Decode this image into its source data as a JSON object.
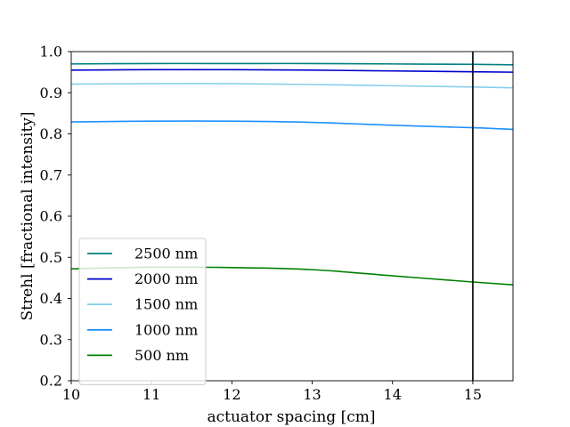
{
  "chart_data": {
    "type": "line",
    "title": "",
    "xlabel": "actuator spacing [cm]",
    "ylabel": "Strehl [fractional intensity]",
    "xlim": [
      10,
      15.5
    ],
    "ylim": [
      0.2,
      1.0
    ],
    "xticks": [
      10,
      11,
      12,
      13,
      14,
      15
    ],
    "yticks": [
      0.2,
      0.3,
      0.4,
      0.5,
      0.6,
      0.7,
      0.8,
      0.9,
      1.0
    ],
    "xtick_labels": [
      "10",
      "11",
      "12",
      "13",
      "14",
      "15"
    ],
    "ytick_labels": [
      "0.2",
      "0.3",
      "0.4",
      "0.5",
      "0.6",
      "0.7",
      "0.8",
      "0.9",
      "1.0"
    ],
    "grid": false,
    "legend_position": "lower-left",
    "vertical_line_x": 15,
    "series": [
      {
        "name": "2500 nm",
        "color": "#008080",
        "x": [
          10,
          11,
          12,
          13,
          14,
          15,
          15.5
        ],
        "y": [
          0.97,
          0.971,
          0.971,
          0.971,
          0.97,
          0.969,
          0.968
        ]
      },
      {
        "name": "2000 nm",
        "color": "#0000cd",
        "x": [
          10,
          11,
          12,
          13,
          14,
          15,
          15.5
        ],
        "y": [
          0.955,
          0.956,
          0.956,
          0.955,
          0.953,
          0.951,
          0.95
        ]
      },
      {
        "name": "1500 nm",
        "color": "#87ceeb",
        "x": [
          10,
          11,
          12,
          13,
          14,
          15,
          15.5
        ],
        "y": [
          0.921,
          0.922,
          0.922,
          0.92,
          0.917,
          0.914,
          0.912
        ]
      },
      {
        "name": "1000 nm",
        "color": "#1e90ff",
        "x": [
          10,
          11,
          12,
          13,
          14,
          15,
          15.5
        ],
        "y": [
          0.829,
          0.831,
          0.831,
          0.828,
          0.821,
          0.815,
          0.811
        ]
      },
      {
        "name": "500 nm",
        "color": "#008000",
        "x": [
          10,
          11,
          12,
          13,
          14,
          15,
          15.5
        ],
        "y": [
          0.472,
          0.476,
          0.475,
          0.47,
          0.455,
          0.44,
          0.433
        ]
      }
    ]
  }
}
